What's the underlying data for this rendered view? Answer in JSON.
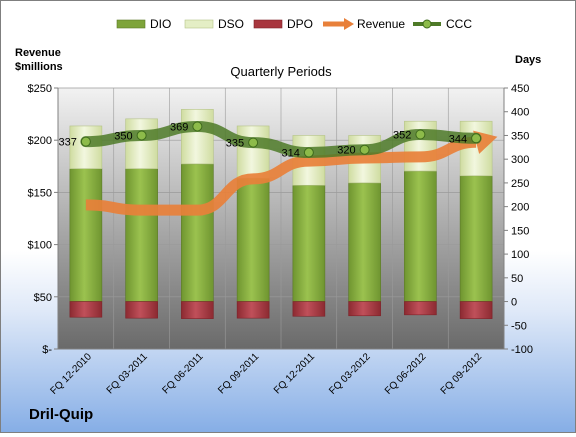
{
  "chart_data": {
    "type": "bar",
    "title": "Quarterly Periods",
    "company": "Dril-Quip",
    "left_axis_label": [
      "Revenue",
      "$millions"
    ],
    "right_axis_label": "Days",
    "categories": [
      "FQ 12-2010",
      "FQ 03-2011",
      "FQ 06-2011",
      "FQ 09-2011",
      "FQ 12-2011",
      "FQ 03-2012",
      "FQ 06-2012",
      "FQ 09-2012"
    ],
    "left_ticks": [
      "$-",
      "$50",
      "$100",
      "$150",
      "$200",
      "$250"
    ],
    "right_ticks": [
      "-100",
      "-50",
      "0",
      "50",
      "100",
      "150",
      "200",
      "250",
      "300",
      "350",
      "400",
      "450"
    ],
    "left_ylim": [
      0,
      250
    ],
    "right_ylim": [
      -100,
      450
    ],
    "legend": [
      "DIO",
      "DSO",
      "DPO",
      "Revenue",
      "CCC"
    ],
    "legend_position": "top",
    "series": [
      {
        "name": "DIO",
        "type": "bar",
        "axis": "right",
        "color": "#7ea43a",
        "values": [
          280,
          280,
          290,
          260,
          245,
          250,
          275,
          265
        ]
      },
      {
        "name": "DSO",
        "type": "bar",
        "axis": "right",
        "color": "#e4eec5",
        "values": [
          90,
          105,
          115,
          110,
          105,
          100,
          105,
          115
        ]
      },
      {
        "name": "DPO",
        "type": "bar",
        "axis": "right",
        "color": "#a8363e",
        "values": [
          -33,
          -35,
          -36,
          -35,
          -31,
          -30,
          -28,
          -36
        ]
      },
      {
        "name": "Revenue",
        "type": "line",
        "axis": "left",
        "color": "#e8803a",
        "values": [
          138,
          133,
          133,
          163,
          180,
          183,
          184,
          198
        ]
      },
      {
        "name": "CCC",
        "type": "line",
        "axis": "right",
        "color": "#4e7a28",
        "values": [
          337,
          350,
          369,
          335,
          314,
          320,
          352,
          344
        ]
      }
    ],
    "ccc_labels": [
      "337",
      "350",
      "369",
      "335",
      "314",
      "320",
      "352",
      "344"
    ]
  }
}
